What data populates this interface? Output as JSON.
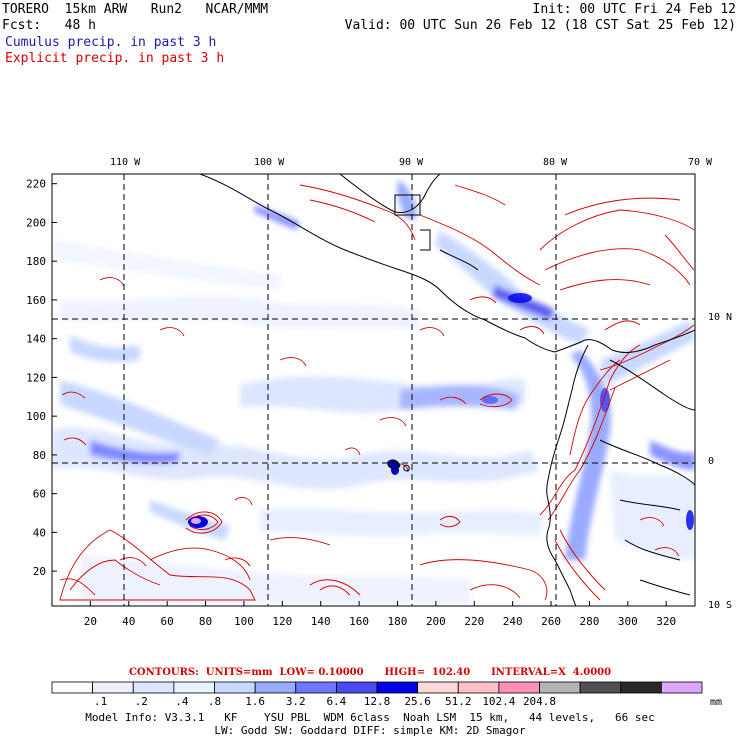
{
  "header": {
    "left_line1": "TORERO  15km ARW   Run2   NCAR/MMM",
    "left_line2": "Fcst:   48 h",
    "right_line1": "Init: 00 UTC Fri 24 Feb 12",
    "right_line2": "Valid: 00 UTC Sun 26 Feb 12 (18 CST Sat 25 Feb 12)",
    "cumulus_label": "Cumulus precip. in past 3 h",
    "explicit_label": "Explicit precip. in past 3 h",
    "cumulus_color": "#1a1aaa",
    "explicit_color": "#d40000"
  },
  "map": {
    "lon_labels": [
      "110 W",
      "100 W",
      "90 W",
      "80 W",
      "70 W"
    ],
    "lat_labels": [
      "10 N",
      "0",
      "10 S"
    ],
    "y_ticks": [
      "20",
      "40",
      "60",
      "80",
      "100",
      "120",
      "140",
      "160",
      "180",
      "200",
      "220"
    ],
    "x_ticks": [
      "20",
      "40",
      "60",
      "80",
      "100",
      "120",
      "140",
      "160",
      "180",
      "200",
      "220",
      "240",
      "260",
      "280",
      "300",
      "320"
    ],
    "x_range": [
      0,
      335
    ],
    "y_range": [
      2,
      225
    ]
  },
  "legend": {
    "contour_info": "CONTOURS:  UNITS=mm  LOW= 0.10000      HIGH=  102.40      INTERVAL=X  4.0000",
    "unit": "mm",
    "colors": [
      "#ffffff",
      "#eeeeff",
      "#dde6ff",
      "#e6f5ff",
      "#c8d8ff",
      "#9aaaff",
      "#6e78ff",
      "#4a4aee",
      "#0000e6",
      "#ffd8d8",
      "#ffc0c8",
      "#ff90b8",
      "#b4b4b4",
      "#505050",
      "#282828",
      "#dca8ff"
    ],
    "labels": [
      ".1",
      ".2",
      ".4",
      ".8",
      "1.6",
      "3.2",
      "6.4",
      "12.8",
      "25.6",
      "51.2",
      "102.4",
      "204.8"
    ]
  },
  "model_info": {
    "line1": "Model Info: V3.3.1   KF    YSU PBL  WDM 6class  Noah LSM  15 km,   44 levels,   66 sec",
    "line2": "LW: Godd SW: Goddard DIFF: simple KM: 2D Smagor"
  }
}
